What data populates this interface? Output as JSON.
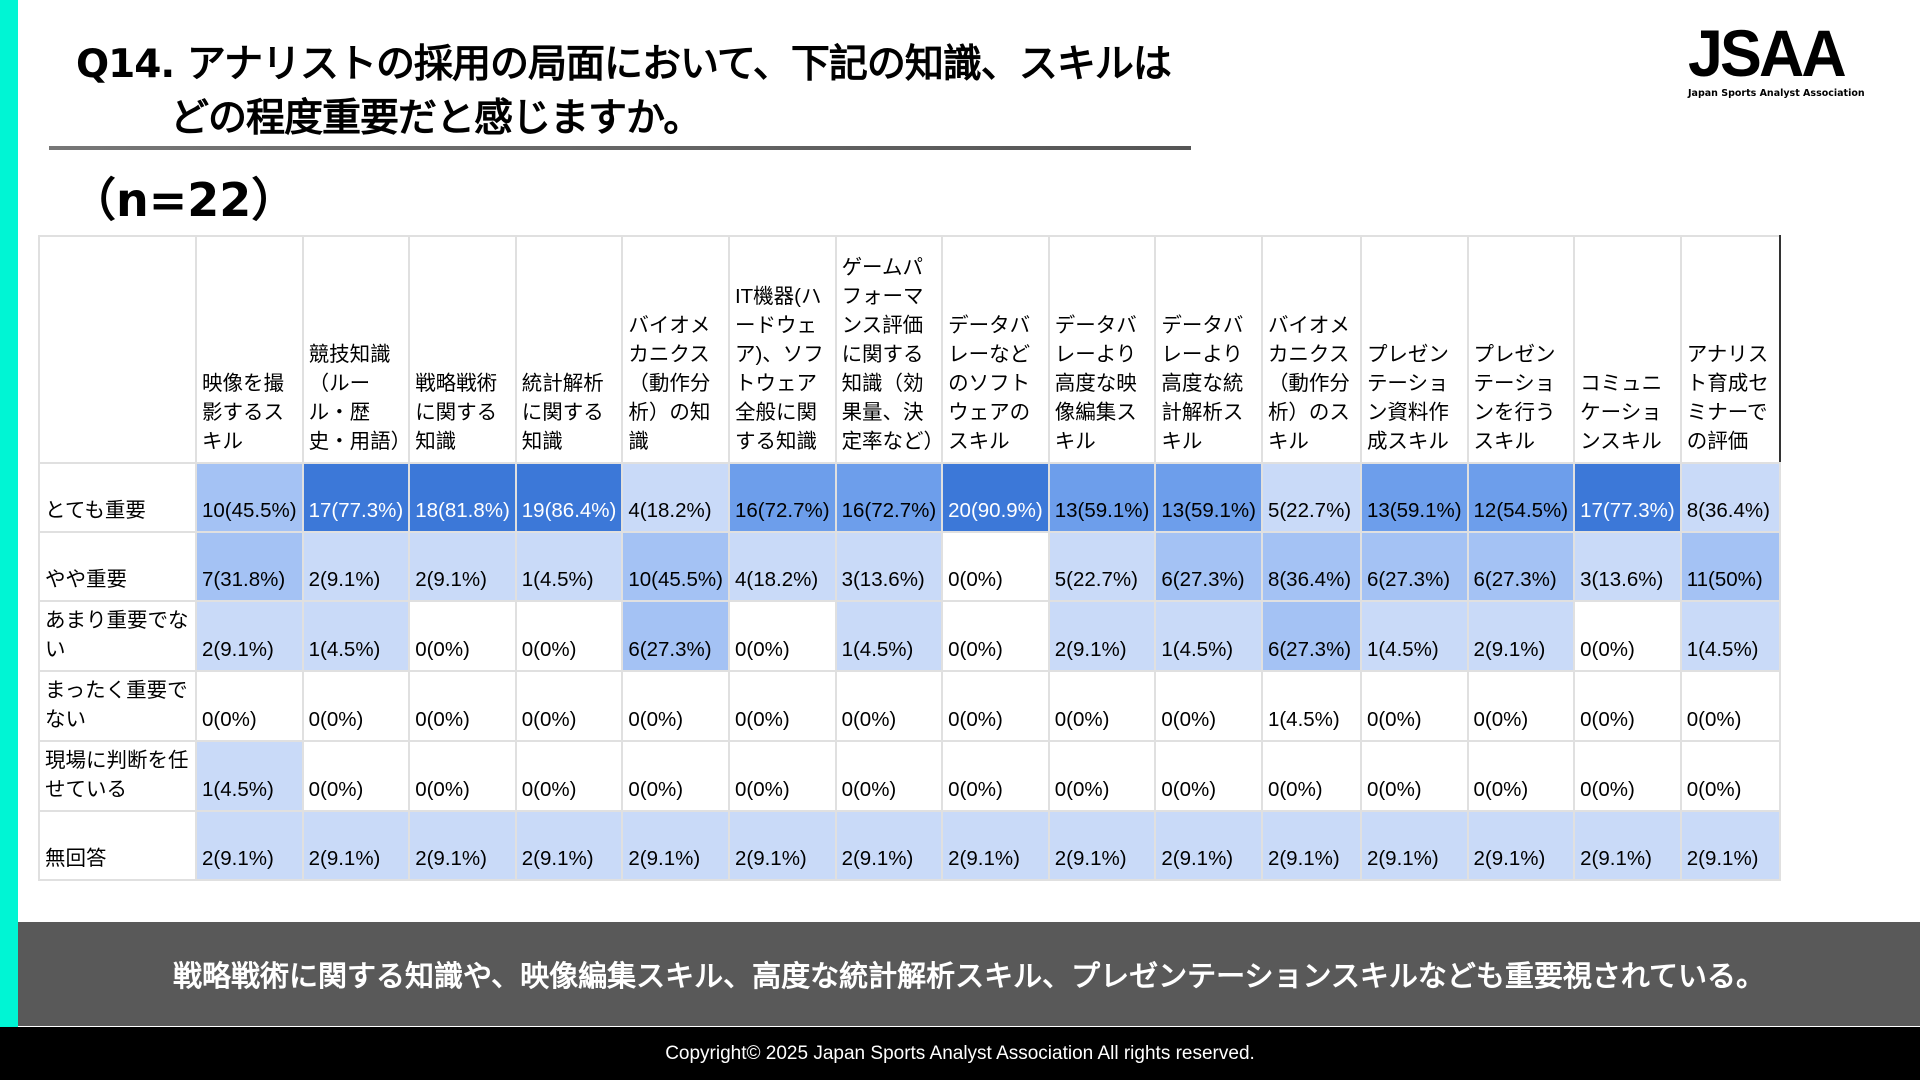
{
  "title": {
    "line1": "Q14. アナリストの採用の局面において、下記の知識、スキルは",
    "line2": "どの程度重要だと感じますか。"
  },
  "sample_size": "（n=22）",
  "logo": {
    "mark": "JSAA",
    "subtitle": "Japan Sports Analyst Association"
  },
  "table": {
    "columns": [
      "映像を撮影するスキル",
      "競技知識（ルール・歴史・用語）",
      "戦略戦術に関する知識",
      "統計解析に関する知識",
      "バイオメカニクス（動作分析）の知識",
      "IT機器(ハードウェア)、ソフトウェア全般に関する知識",
      "ゲームパフォーマンス評価に関する知識（効果量、決定率など）",
      "データバレーなどのソフトウェアのスキル",
      "データバレーより高度な映像編集スキル",
      "データバレーより高度な統計解析スキル",
      "バイオメカニクス（動作分析）のスキル",
      "プレゼンテーション資料作成スキル",
      "プレゼンテーションを行うスキル",
      "コミュニケーションスキル",
      "アナリスト育成セミナーでの評価"
    ],
    "rows": [
      {
        "label": "とても重要",
        "cells": [
          "10(45.5%)",
          "17(77.3%)",
          "18(81.8%)",
          "19(86.4%)",
          "4(18.2%)",
          "16(72.7%)",
          "16(72.7%)",
          "20(90.9%)",
          "13(59.1%)",
          "13(59.1%)",
          "5(22.7%)",
          "13(59.1%)",
          "12(54.5%)",
          "17(77.3%)",
          "8(36.4%)"
        ],
        "shade": [
          2,
          4,
          4,
          4,
          1,
          3,
          3,
          4,
          3,
          3,
          1,
          3,
          3,
          4,
          1
        ]
      },
      {
        "label": "やや重要",
        "cells": [
          "7(31.8%)",
          "2(9.1%)",
          "2(9.1%)",
          "1(4.5%)",
          "10(45.5%)",
          "4(18.2%)",
          "3(13.6%)",
          "0(0%)",
          "5(22.7%)",
          "6(27.3%)",
          "8(36.4%)",
          "6(27.3%)",
          "6(27.3%)",
          "3(13.6%)",
          "11(50%)"
        ],
        "shade": [
          2,
          1,
          1,
          1,
          2,
          1,
          1,
          0,
          1,
          2,
          2,
          2,
          2,
          1,
          2
        ]
      },
      {
        "label": "あまり重要でない",
        "cells": [
          "2(9.1%)",
          "1(4.5%)",
          "0(0%)",
          "0(0%)",
          "6(27.3%)",
          "0(0%)",
          "1(4.5%)",
          "0(0%)",
          "2(9.1%)",
          "1(4.5%)",
          "6(27.3%)",
          "1(4.5%)",
          "2(9.1%)",
          "0(0%)",
          "1(4.5%)"
        ],
        "shade": [
          1,
          1,
          0,
          0,
          2,
          0,
          1,
          0,
          1,
          1,
          2,
          1,
          1,
          0,
          1
        ]
      },
      {
        "label": "まったく重要でない",
        "cells": [
          "0(0%)",
          "0(0%)",
          "0(0%)",
          "0(0%)",
          "0(0%)",
          "0(0%)",
          "0(0%)",
          "0(0%)",
          "0(0%)",
          "0(0%)",
          "1(4.5%)",
          "0(0%)",
          "0(0%)",
          "0(0%)",
          "0(0%)"
        ],
        "shade": [
          0,
          0,
          0,
          0,
          0,
          0,
          0,
          0,
          0,
          0,
          0,
          0,
          0,
          0,
          0
        ]
      },
      {
        "label": "現場に判断を任せている",
        "cells": [
          "1(4.5%)",
          "0(0%)",
          "0(0%)",
          "0(0%)",
          "0(0%)",
          "0(0%)",
          "0(0%)",
          "0(0%)",
          "0(0%)",
          "0(0%)",
          "0(0%)",
          "0(0%)",
          "0(0%)",
          "0(0%)",
          "0(0%)"
        ],
        "shade": [
          1,
          0,
          0,
          0,
          0,
          0,
          0,
          0,
          0,
          0,
          0,
          0,
          0,
          0,
          0
        ]
      },
      {
        "label": "無回答",
        "cells": [
          "2(9.1%)",
          "2(9.1%)",
          "2(9.1%)",
          "2(9.1%)",
          "2(9.1%)",
          "2(9.1%)",
          "2(9.1%)",
          "2(9.1%)",
          "2(9.1%)",
          "2(9.1%)",
          "2(9.1%)",
          "2(9.1%)",
          "2(9.1%)",
          "2(9.1%)",
          "2(9.1%)"
        ],
        "shade": [
          1,
          1,
          1,
          1,
          1,
          1,
          1,
          1,
          1,
          1,
          1,
          1,
          1,
          1,
          1
        ]
      }
    ],
    "shade_colors": [
      "#ffffff",
      "#c9daf8",
      "#a4c2f4",
      "#6d9eeb",
      "#3c78d8"
    ]
  },
  "summary": "戦略戦術に関する知識や、映像編集スキル、高度な統計解析スキル、プレゼンテーションスキルなども重要視されている。",
  "footer": "Copyright© 2025 Japan Sports Analyst Association All rights reserved.",
  "colors": {
    "accent": "#00f5d4",
    "summary_bg": "#595959",
    "footer_bg": "#000000"
  }
}
